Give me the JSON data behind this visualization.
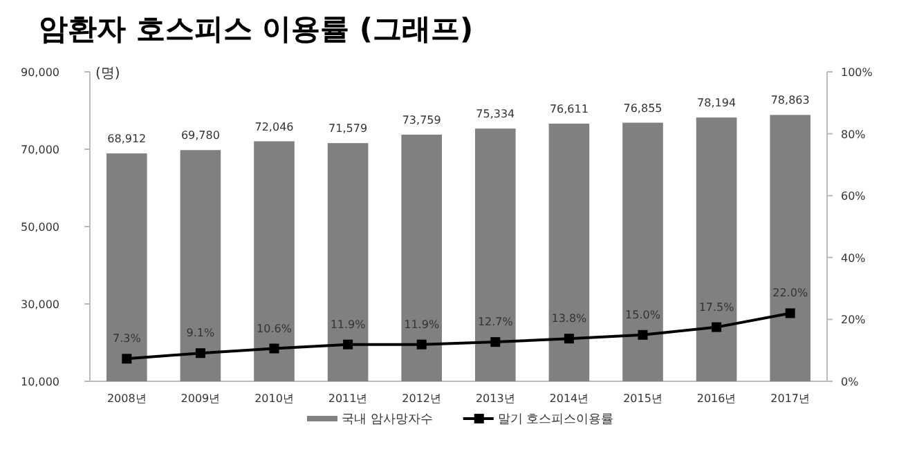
{
  "chart_data": {
    "type": "bar",
    "title": "암환자 호스피스 이용률 (그래프)",
    "ylabel": "(명)",
    "categories": [
      "2008년",
      "2009년",
      "2010년",
      "2011년",
      "2012년",
      "2013년",
      "2014년",
      "2015년",
      "2016년",
      "2017년"
    ],
    "series": [
      {
        "name": "국내 암사망자수",
        "color": "#808080",
        "values": [
          68912,
          69780,
          72046,
          71579,
          73759,
          75334,
          76611,
          76855,
          78194,
          78863
        ],
        "value_labels": [
          "68,912",
          "69,780",
          "72,046",
          "71,579",
          "73,759",
          "75,334",
          "76,611",
          "76,855",
          "78,194",
          "78,863"
        ]
      },
      {
        "name": "말기 호스피스이용률",
        "type": "line",
        "axis": "y2",
        "color": "#000000",
        "marker": "square",
        "values": [
          7.3,
          9.1,
          10.6,
          11.9,
          11.9,
          12.7,
          13.8,
          15.0,
          17.5,
          22.0
        ],
        "value_labels": [
          "7.3%",
          "9.1%",
          "10.6%",
          "11.9%",
          "11.9%",
          "12.7%",
          "13.8%",
          "15.0%",
          "17.5%",
          "22.0%"
        ]
      }
    ],
    "ylim": [
      10000,
      90000
    ],
    "yticks": [
      {
        "value": 10000,
        "label": "10,000"
      },
      {
        "value": 30000,
        "label": "30,000"
      },
      {
        "value": 50000,
        "label": "50,000"
      },
      {
        "value": 70000,
        "label": "70,000"
      },
      {
        "value": 90000,
        "label": "90,000"
      }
    ],
    "y2lim": [
      0,
      100
    ],
    "y2ticks": [
      {
        "value": 0,
        "label": "0%"
      },
      {
        "value": 20,
        "label": "20%"
      },
      {
        "value": 40,
        "label": "40%"
      },
      {
        "value": 60,
        "label": "60%"
      },
      {
        "value": 80,
        "label": "80%"
      },
      {
        "value": 100,
        "label": "100%"
      }
    ],
    "legend": "bottom"
  }
}
